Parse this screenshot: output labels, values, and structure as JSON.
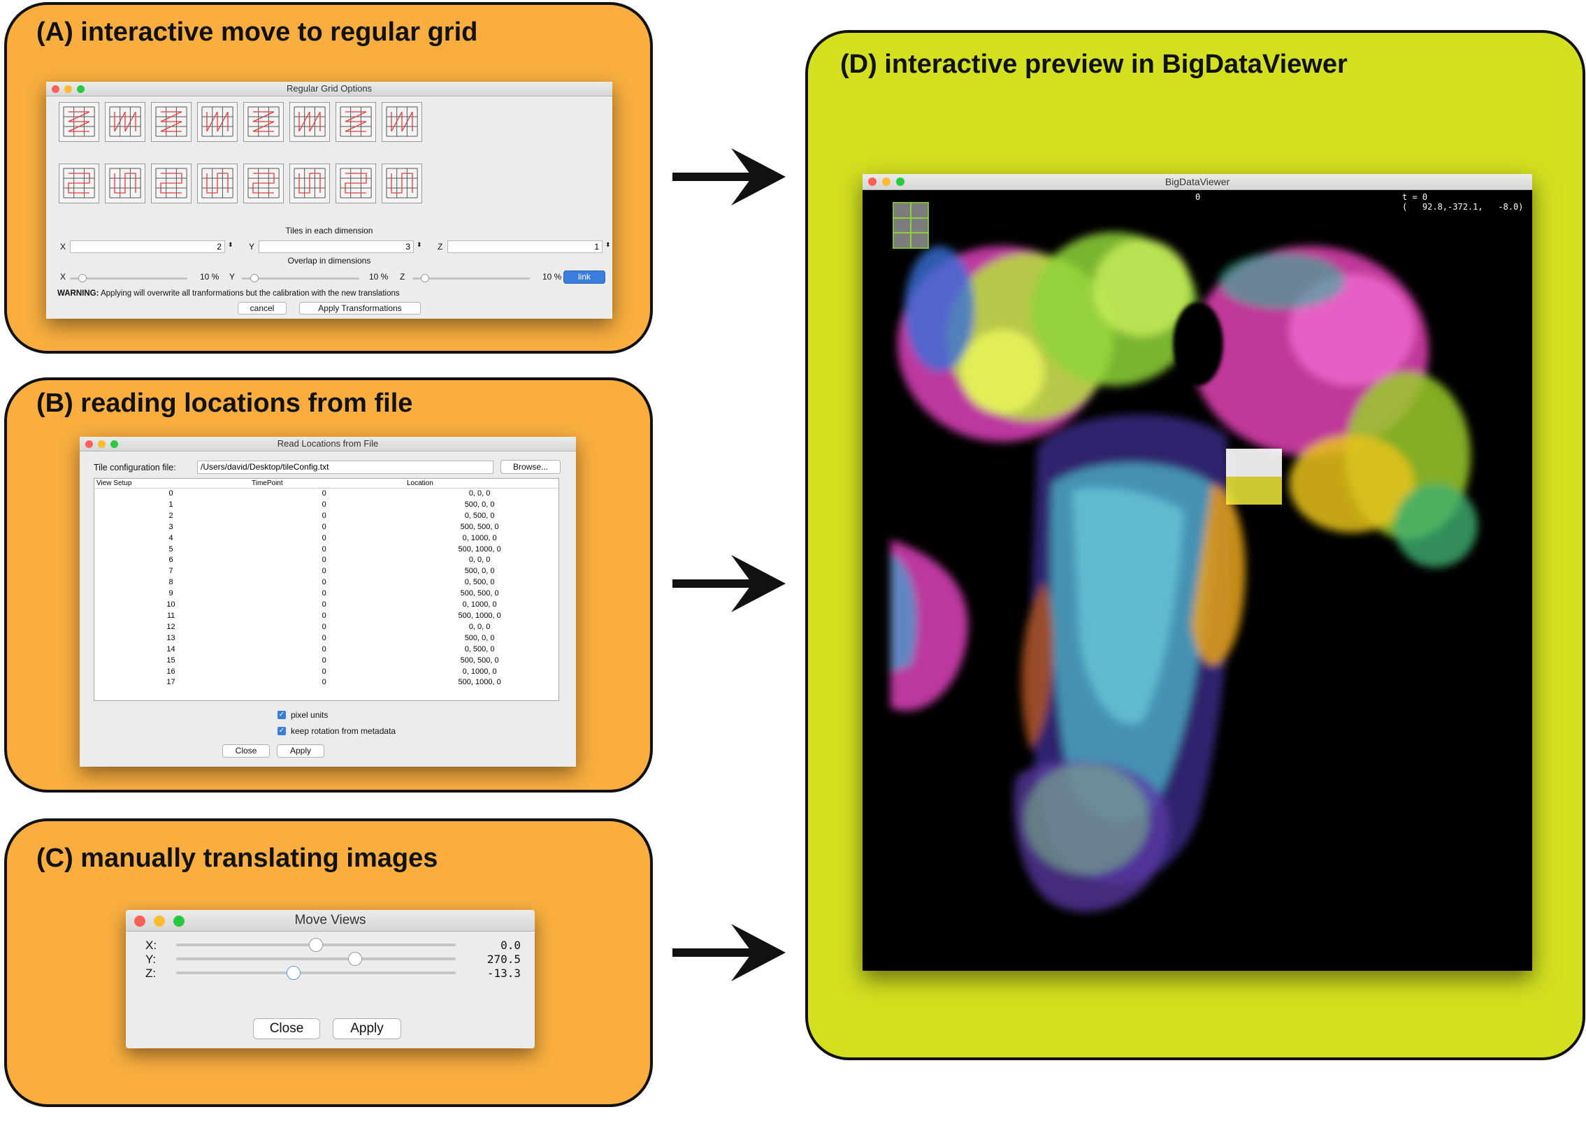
{
  "panels": {
    "a": {
      "title": "(A) interactive move to regular grid"
    },
    "b": {
      "title": "(B) reading locations from file"
    },
    "c": {
      "title": "(C) manually translating images"
    },
    "d": {
      "title": "(D) interactive preview in BigDataViewer"
    }
  },
  "regular_grid": {
    "window_title": "Regular Grid Options",
    "tiles_label": "Tiles in each dimension",
    "tiles": [
      {
        "axis": "X",
        "value": "2"
      },
      {
        "axis": "Y",
        "value": "3"
      },
      {
        "axis": "Z",
        "value": "1"
      }
    ],
    "overlap_label": "Overlap in dimensions",
    "overlaps": [
      {
        "axis": "X",
        "value": "10 %",
        "fraction": 0.1
      },
      {
        "axis": "Y",
        "value": "10 %",
        "fraction": 0.1
      },
      {
        "axis": "Z",
        "value": "10 %",
        "fraction": 0.1
      }
    ],
    "link_label": "link",
    "warning_bold": "WARNING:",
    "warning_text": "Applying will overwrite all tranformations but the calibration with the new translations",
    "cancel_label": "cancel",
    "apply_label": "Apply Transformations"
  },
  "read_locations": {
    "window_title": "Read Locations from File",
    "file_label": "Tile configuration file:",
    "file_value": "/Users/david/Desktop/tileConfig.txt",
    "browse_label": "Browse...",
    "columns": [
      "View Setup",
      "TimePoint",
      "Location"
    ],
    "rows": [
      [
        "0",
        "0",
        "0, 0, 0"
      ],
      [
        "1",
        "0",
        "500, 0, 0"
      ],
      [
        "2",
        "0",
        "0, 500, 0"
      ],
      [
        "3",
        "0",
        "500, 500, 0"
      ],
      [
        "4",
        "0",
        "0, 1000, 0"
      ],
      [
        "5",
        "0",
        "500, 1000, 0"
      ],
      [
        "6",
        "0",
        "0, 0, 0"
      ],
      [
        "7",
        "0",
        "500, 0, 0"
      ],
      [
        "8",
        "0",
        "0, 500, 0"
      ],
      [
        "9",
        "0",
        "500, 500, 0"
      ],
      [
        "10",
        "0",
        "0, 1000, 0"
      ],
      [
        "11",
        "0",
        "500, 1000, 0"
      ],
      [
        "12",
        "0",
        "0, 0, 0"
      ],
      [
        "13",
        "0",
        "500, 0, 0"
      ],
      [
        "14",
        "0",
        "0, 500, 0"
      ],
      [
        "15",
        "0",
        "500, 500, 0"
      ],
      [
        "16",
        "0",
        "0, 1000, 0"
      ],
      [
        "17",
        "0",
        "500, 1000, 0"
      ]
    ],
    "pixel_units_label": "pixel units",
    "keep_rotation_label": "keep rotation from metadata",
    "close_label": "Close",
    "apply_label": "Apply"
  },
  "move_views": {
    "window_title": "Move Views",
    "sliders": [
      {
        "axis": "X:",
        "value": "0.0",
        "position": 0.5
      },
      {
        "axis": "Y:",
        "value": "270.5",
        "position": 0.64
      },
      {
        "axis": "Z:",
        "value": "-13.3",
        "position": 0.42
      }
    ],
    "close_label": "Close",
    "apply_label": "Apply"
  },
  "bdv": {
    "window_title": "BigDataViewer",
    "source_index": "0",
    "time": "t = 0",
    "coords": "(   92.8,-372.1,   -8.0)"
  },
  "colors": {
    "orange": "#f9ae3f",
    "lime": "#d3e020",
    "link_blue": "#3b7ddd"
  }
}
